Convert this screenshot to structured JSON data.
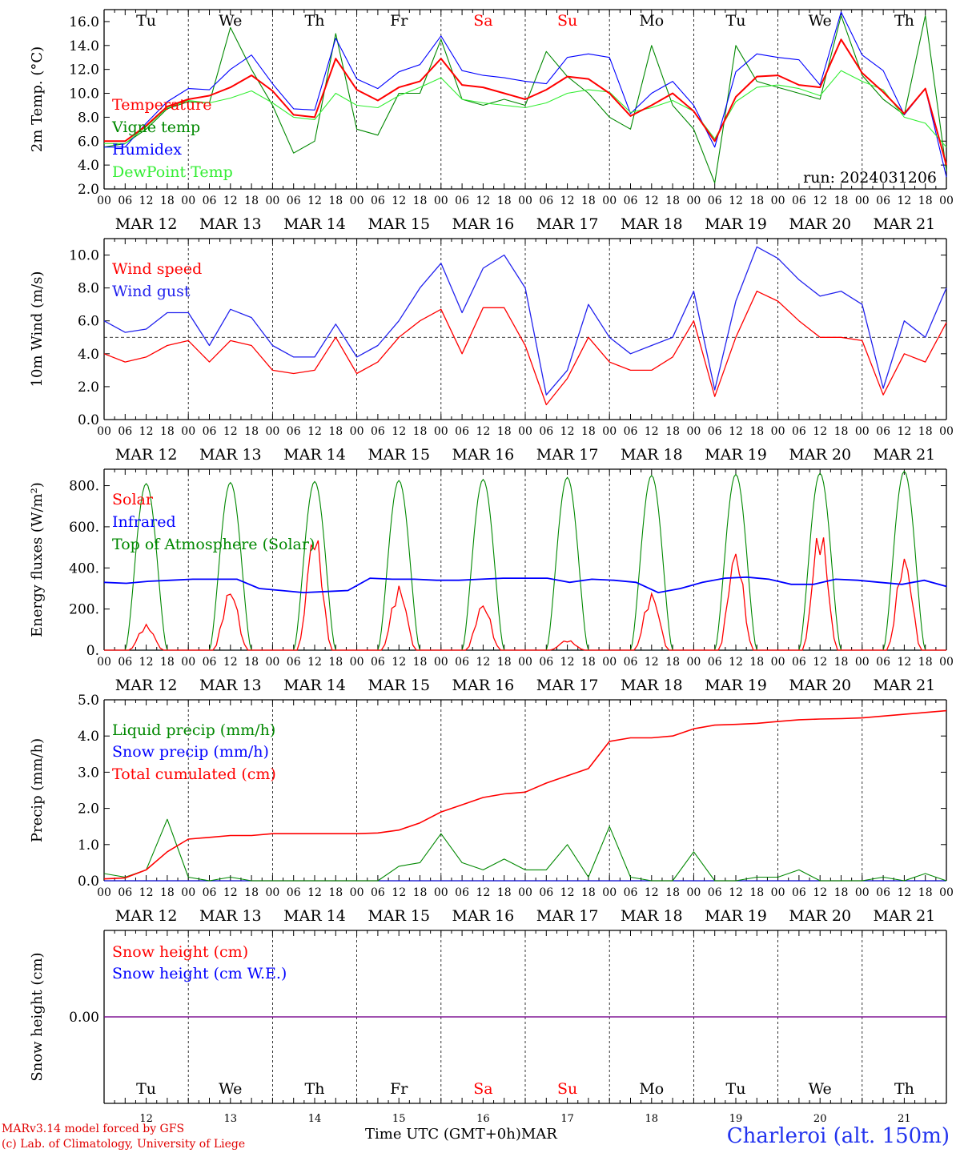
{
  "chart_data": [
    {
      "type": "line",
      "ylabel": "2m Temp. (°C)",
      "ylim": [
        2.0,
        17.0
      ],
      "yticks": [
        2.0,
        4.0,
        6.0,
        8.0,
        10.0,
        12.0,
        14.0,
        16.0
      ],
      "ytick_labels": [
        "2.0",
        "4.0",
        "6.0",
        "8.0",
        "10.0",
        "12.0",
        "14.0",
        "16.0"
      ],
      "annotation": "run: 2024031206",
      "legend_placement": "left",
      "x_hours": [
        0,
        6,
        12,
        18,
        24,
        30,
        36,
        42,
        48,
        54,
        60,
        66,
        72,
        78,
        84,
        90,
        96,
        102,
        108,
        114,
        120,
        126,
        132,
        138,
        144,
        150,
        156,
        162,
        168,
        174,
        180,
        186,
        192,
        198,
        204,
        210,
        216,
        222,
        228,
        234,
        240
      ],
      "series": [
        {
          "name": "Temperature",
          "color": "#ff0000",
          "values": [
            6.0,
            6.0,
            7.3,
            8.9,
            9.5,
            9.8,
            10.5,
            11.5,
            10.2,
            8.2,
            8.0,
            12.9,
            10.3,
            9.4,
            10.5,
            11.0,
            12.9,
            10.7,
            10.5,
            10.0,
            9.5,
            10.3,
            11.4,
            11.2,
            10.0,
            8.1,
            9.0,
            10.0,
            8.5,
            6.0,
            9.7,
            11.4,
            11.5,
            10.7,
            10.5,
            14.5,
            11.7,
            10.1,
            8.3,
            10.4,
            4.0
          ]
        },
        {
          "name": "Vigne temp",
          "color": "#008800",
          "values": [
            5.5,
            5.8,
            7.0,
            8.7,
            9.3,
            9.2,
            15.5,
            12.0,
            9.0,
            5.0,
            6.0,
            15.0,
            7.0,
            6.5,
            10.0,
            10.0,
            14.5,
            9.5,
            9.0,
            9.5,
            9.0,
            13.5,
            11.4,
            10.0,
            8.0,
            7.0,
            14.0,
            9.0,
            7.0,
            2.5,
            14.0,
            11.0,
            10.5,
            10.0,
            9.5,
            16.5,
            11.5,
            9.5,
            8.2,
            16.5,
            3.5
          ]
        },
        {
          "name": "Humidex",
          "color": "#0000ff",
          "values": [
            5.5,
            5.5,
            7.5,
            9.3,
            10.4,
            10.3,
            12.0,
            13.2,
            10.8,
            8.7,
            8.6,
            14.6,
            11.2,
            10.4,
            11.8,
            12.4,
            14.8,
            11.9,
            11.5,
            11.3,
            11.0,
            10.8,
            13.0,
            13.3,
            13.0,
            8.3,
            10.0,
            11.0,
            9.0,
            5.5,
            11.8,
            13.3,
            13.0,
            12.8,
            10.7,
            16.8,
            13.2,
            11.9,
            8.2,
            10.4,
            3.0
          ]
        },
        {
          "name": "DewPoint Temp",
          "color": "#33ee33",
          "values": [
            5.8,
            5.8,
            7.2,
            8.8,
            9.4,
            9.2,
            9.6,
            10.2,
            9.2,
            8.0,
            7.8,
            10.0,
            9.0,
            8.8,
            9.8,
            10.5,
            11.3,
            9.5,
            9.2,
            9.0,
            8.8,
            9.2,
            10.0,
            10.3,
            10.1,
            8.4,
            8.8,
            9.4,
            8.5,
            6.2,
            9.3,
            10.5,
            10.7,
            10.4,
            9.8,
            11.9,
            11.0,
            10.3,
            8.0,
            7.5,
            5.5
          ]
        }
      ]
    },
    {
      "type": "line",
      "ylabel": "10m Wind (m/s)",
      "ylim": [
        0.0,
        11.0
      ],
      "yticks": [
        0.0,
        2.0,
        4.0,
        6.0,
        8.0,
        10.0
      ],
      "ytick_labels": [
        "0.0",
        "2.0",
        "4.0",
        "6.0",
        "8.0",
        "10.0"
      ],
      "reference_line": 5.0,
      "legend_placement": "top-left",
      "x_hours": [
        0,
        6,
        12,
        18,
        24,
        30,
        36,
        42,
        48,
        54,
        60,
        66,
        72,
        78,
        84,
        90,
        96,
        102,
        108,
        114,
        120,
        126,
        132,
        138,
        144,
        150,
        156,
        162,
        168,
        174,
        180,
        186,
        192,
        198,
        204,
        210,
        216,
        222,
        228,
        234,
        240
      ],
      "series": [
        {
          "name": "Wind speed",
          "color": "#ff0000",
          "values": [
            4.0,
            3.5,
            3.8,
            4.5,
            4.8,
            3.5,
            4.8,
            4.5,
            3.0,
            2.8,
            3.0,
            5.0,
            2.8,
            3.5,
            5.0,
            6.0,
            6.7,
            4.0,
            6.8,
            6.8,
            4.5,
            0.9,
            2.5,
            5.0,
            3.5,
            3.0,
            3.0,
            3.8,
            6.0,
            1.4,
            5.0,
            7.8,
            7.2,
            6.0,
            5.0,
            5.0,
            4.8,
            1.5,
            4.0,
            3.5,
            5.9
          ]
        },
        {
          "name": "Wind gust",
          "color": "#2222ee",
          "values": [
            6.0,
            5.3,
            5.5,
            6.5,
            6.5,
            4.5,
            6.7,
            6.2,
            4.5,
            3.8,
            3.8,
            5.8,
            3.8,
            4.5,
            6.0,
            8.0,
            9.5,
            6.5,
            9.2,
            10.0,
            8.0,
            1.5,
            3.0,
            7.0,
            5.0,
            4.0,
            4.5,
            5.0,
            7.8,
            1.8,
            7.2,
            10.5,
            9.8,
            8.5,
            7.5,
            7.8,
            7.0,
            1.9,
            6.0,
            5.0,
            8.0
          ]
        }
      ]
    },
    {
      "type": "line",
      "ylabel": "Energy fluxes (W/m²)",
      "ylim": [
        0,
        880
      ],
      "yticks": [
        0,
        200,
        400,
        600,
        800
      ],
      "ytick_labels": [
        "0.",
        "200.",
        "400.",
        "600.",
        "800."
      ],
      "legend_placement": "top-left",
      "day_peaks": {
        "solar": [
          125,
          300,
          590,
          315,
          230,
          50,
          280,
          490,
          610,
          460
        ],
        "toa": [
          810,
          815,
          820,
          825,
          830,
          840,
          850,
          855,
          860,
          870
        ]
      },
      "series": [
        {
          "name": "Solar",
          "color": "#ff0000"
        },
        {
          "name": "Infrared",
          "color": "#0000ff",
          "values": [
            330,
            325,
            335,
            340,
            345,
            345,
            345,
            300,
            290,
            280,
            285,
            290,
            350,
            345,
            345,
            340,
            340,
            345,
            350,
            350,
            350,
            330,
            345,
            340,
            330,
            280,
            300,
            330,
            350,
            355,
            345,
            320,
            320,
            345,
            340,
            330,
            320,
            340,
            310
          ]
        },
        {
          "name": "Top of Atmosphere (Solar)",
          "color": "#008800"
        }
      ]
    },
    {
      "type": "line",
      "ylabel": "Precip (mm/h)",
      "ylim": [
        0.0,
        5.0
      ],
      "yticks": [
        0.0,
        1.0,
        2.0,
        3.0,
        4.0,
        5.0
      ],
      "ytick_labels": [
        "0.0",
        "1.0",
        "2.0",
        "3.0",
        "4.0",
        "5.0"
      ],
      "legend_placement": "top-left",
      "x_hours": [
        0,
        6,
        12,
        18,
        24,
        30,
        36,
        42,
        48,
        54,
        60,
        66,
        72,
        78,
        84,
        90,
        96,
        102,
        108,
        114,
        120,
        126,
        132,
        138,
        144,
        150,
        156,
        162,
        168,
        174,
        180,
        186,
        192,
        198,
        204,
        210,
        216,
        222,
        228,
        234,
        240
      ],
      "series": [
        {
          "name": "Liquid precip (mm/h)",
          "color": "#008800",
          "values": [
            0.2,
            0.1,
            0.3,
            1.7,
            0.1,
            0.0,
            0.1,
            0.0,
            0.0,
            0.0,
            0.0,
            0.0,
            0.0,
            0.0,
            0.4,
            0.5,
            1.3,
            0.5,
            0.3,
            0.6,
            0.3,
            0.3,
            1.0,
            0.1,
            1.5,
            0.1,
            0.0,
            0.0,
            0.8,
            0.0,
            0.0,
            0.1,
            0.1,
            0.3,
            0.0,
            0.0,
            0.0,
            0.1,
            0.0,
            0.2,
            0.0
          ]
        },
        {
          "name": "Snow precip (mm/h)",
          "color": "#0000ff",
          "values": [
            0,
            0,
            0,
            0,
            0,
            0,
            0,
            0,
            0,
            0,
            0,
            0,
            0,
            0,
            0,
            0,
            0,
            0,
            0,
            0,
            0,
            0,
            0,
            0,
            0,
            0,
            0,
            0,
            0,
            0,
            0,
            0,
            0,
            0,
            0,
            0,
            0,
            0,
            0,
            0,
            0
          ]
        },
        {
          "name": "Total cumulated (cm)",
          "color": "#ff0000",
          "values": [
            0.05,
            0.08,
            0.3,
            0.8,
            1.15,
            1.2,
            1.25,
            1.25,
            1.3,
            1.3,
            1.3,
            1.3,
            1.3,
            1.32,
            1.4,
            1.6,
            1.9,
            2.1,
            2.3,
            2.4,
            2.45,
            2.7,
            2.9,
            3.1,
            3.85,
            3.95,
            3.95,
            4.0,
            4.2,
            4.3,
            4.32,
            4.35,
            4.4,
            4.45,
            4.47,
            4.48,
            4.5,
            4.55,
            4.6,
            4.65,
            4.7
          ]
        }
      ]
    },
    {
      "type": "line",
      "ylabel": "Snow height (cm)",
      "yticks": [
        0.0
      ],
      "ytick_labels": [
        "0.00"
      ],
      "legend_placement": "top-left",
      "series": [
        {
          "name": "Snow height (cm)",
          "color": "#ff0000",
          "values": [
            0.0,
            0.0
          ]
        },
        {
          "name": "Snow height (cm W.E.)",
          "color": "#0000ff",
          "values": [
            0.0,
            0.0
          ]
        }
      ]
    }
  ],
  "axis": {
    "hour_labels": [
      "00",
      "06",
      "12",
      "18"
    ],
    "end_hour_label": "00",
    "date_labels": [
      "MAR 12",
      "MAR 13",
      "MAR 14",
      "MAR 15",
      "MAR 16",
      "MAR 17",
      "MAR 18",
      "MAR 19",
      "MAR 20",
      "MAR 21"
    ],
    "weekdays": [
      "Tu",
      "We",
      "Th",
      "Fr",
      "Sa",
      "Su",
      "Mo",
      "Tu",
      "We",
      "Th"
    ],
    "weekday_colors": [
      "#000000",
      "#000000",
      "#000000",
      "#000000",
      "#ff0000",
      "#ff0000",
      "#000000",
      "#000000",
      "#000000",
      "#000000"
    ],
    "day_numbers": [
      "12",
      "13",
      "14",
      "15",
      "16",
      "17",
      "18",
      "19",
      "20",
      "21"
    ]
  },
  "footer": {
    "model_line": "MARv3.14 model forced by GFS",
    "credit_line": "(c) Lab. of Climatology, University of Liege",
    "time_axis_label": "Time UTC (GMT+0h)MAR",
    "station": "Charleroi (alt. 150m)"
  }
}
